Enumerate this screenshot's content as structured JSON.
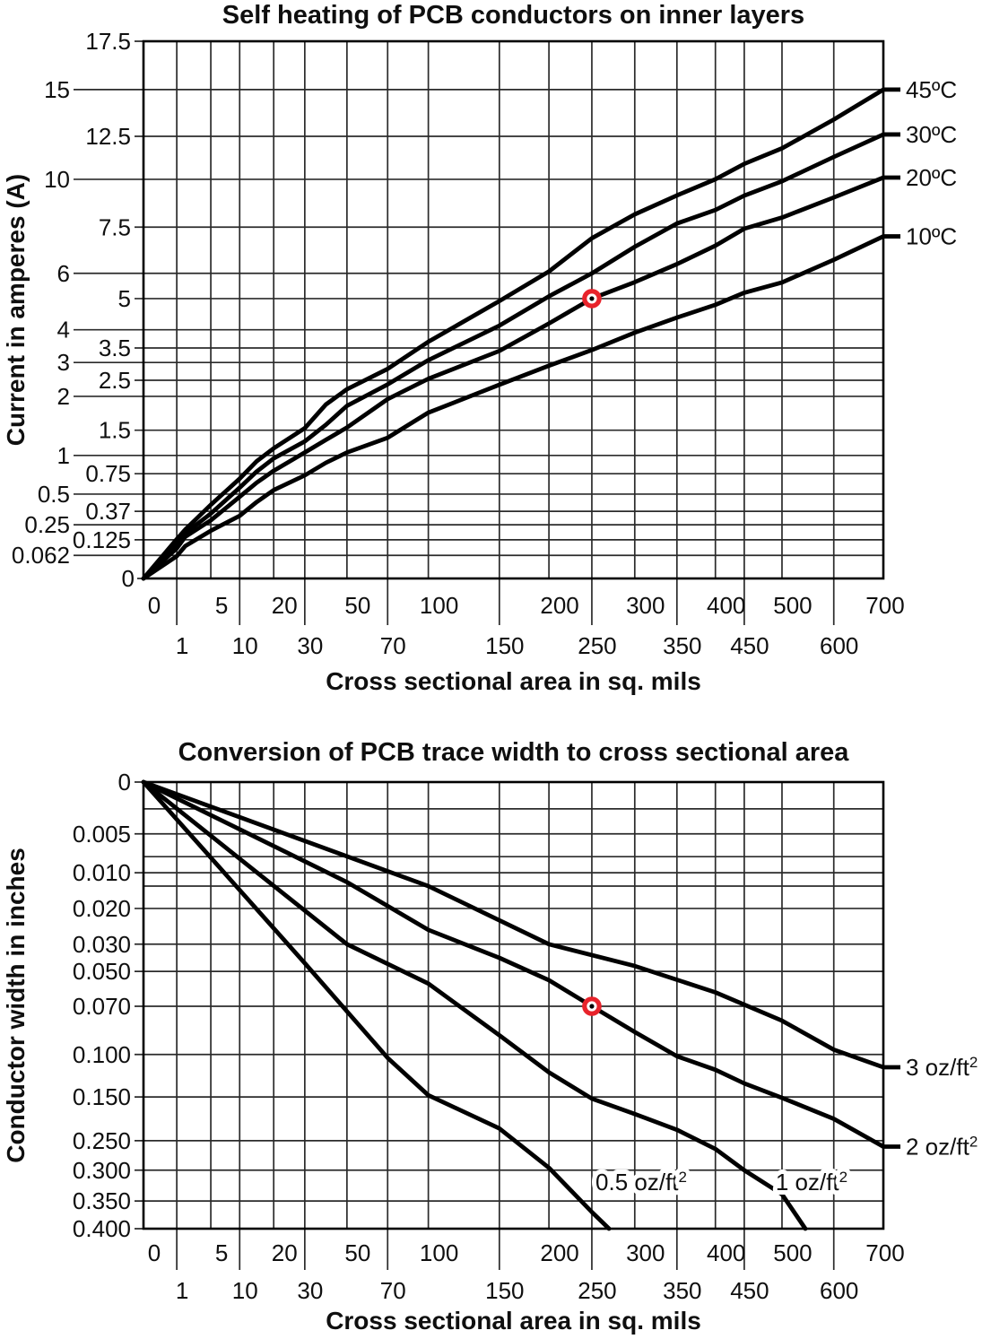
{
  "figure": {
    "background": "#ffffff",
    "ink": "#000000",
    "marker_color": "#e8232b"
  },
  "chart_data": [
    {
      "type": "line",
      "title": "Self heating of PCB conductors on inner layers",
      "xlabel": "Cross sectional area in sq. mils",
      "ylabel": "Current in amperes (A)",
      "xlim": [
        0,
        700
      ],
      "ylim": [
        0,
        17.5
      ],
      "grid": true,
      "legend_position": "right-edge-labels",
      "x_gridline_values": [
        0,
        1,
        5,
        10,
        20,
        30,
        50,
        70,
        100,
        150,
        200,
        250,
        300,
        350,
        400,
        450,
        500,
        600,
        700
      ],
      "x_ticks_row1": [
        {
          "label": "0",
          "value": 0
        },
        {
          "label": "5",
          "value": 5
        },
        {
          "label": "20",
          "value": 20
        },
        {
          "label": "50",
          "value": 50
        },
        {
          "label": "100",
          "value": 100
        },
        {
          "label": "200",
          "value": 200
        },
        {
          "label": "300",
          "value": 300
        },
        {
          "label": "400",
          "value": 400
        },
        {
          "label": "500",
          "value": 500
        },
        {
          "label": "700",
          "value": 700
        }
      ],
      "x_ticks_row2": [
        {
          "label": "1",
          "value": 1
        },
        {
          "label": "10",
          "value": 10
        },
        {
          "label": "30",
          "value": 30
        },
        {
          "label": "70",
          "value": 70
        },
        {
          "label": "150",
          "value": 150
        },
        {
          "label": "250",
          "value": 250
        },
        {
          "label": "350",
          "value": 350
        },
        {
          "label": "450",
          "value": 450
        },
        {
          "label": "600",
          "value": 600
        }
      ],
      "y_ticks_inner_column": [
        {
          "label": "17.5",
          "value": 17.5
        },
        {
          "label": "12.5",
          "value": 12.5
        },
        {
          "label": "7.5",
          "value": 7.5
        },
        {
          "label": "5",
          "value": 5
        },
        {
          "label": "3.5",
          "value": 3.5
        },
        {
          "label": "2.5",
          "value": 2.5
        },
        {
          "label": "1.5",
          "value": 1.5
        },
        {
          "label": "0.75",
          "value": 0.75
        },
        {
          "label": "0.37",
          "value": 0.37
        },
        {
          "label": "0.125",
          "value": 0.125
        }
      ],
      "y_ticks_outer_column": [
        {
          "label": "15",
          "value": 15
        },
        {
          "label": "10",
          "value": 10
        },
        {
          "label": "6",
          "value": 6
        },
        {
          "label": "4",
          "value": 4
        },
        {
          "label": "3",
          "value": 3
        },
        {
          "label": "2",
          "value": 2
        },
        {
          "label": "1",
          "value": 1
        },
        {
          "label": "0.5",
          "value": 0.5
        },
        {
          "label": "0.25",
          "value": 0.25
        },
        {
          "label": "0.062",
          "value": 0.062
        }
      ],
      "y_tick_origin": {
        "label": "0",
        "value": 0
      },
      "series": [
        {
          "name": "45ºC",
          "sup": "",
          "label_placement": "right",
          "x": [
            0,
            1,
            2,
            5,
            10,
            15,
            20,
            30,
            40,
            50,
            70,
            100,
            150,
            200,
            250,
            300,
            350,
            400,
            450,
            500,
            600,
            700
          ],
          "y": [
            0,
            0.13,
            0.21,
            0.42,
            0.69,
            0.92,
            1.14,
            1.53,
            1.88,
            2.22,
            2.82,
            3.67,
            4.92,
            6.06,
            7.14,
            8.17,
            9.16,
            10.0,
            10.9,
            11.8,
            13.4,
            15.0
          ]
        },
        {
          "name": "30ºC",
          "sup": "",
          "label_placement": "right",
          "x": [
            0,
            1,
            2,
            5,
            10,
            15,
            20,
            30,
            40,
            50,
            70,
            100,
            150,
            200,
            250,
            300,
            350,
            400,
            450,
            500,
            600,
            700
          ],
          "y": [
            0,
            0.11,
            0.18,
            0.35,
            0.58,
            0.78,
            0.96,
            1.28,
            1.58,
            1.86,
            2.37,
            3.08,
            4.13,
            5.09,
            6.0,
            6.86,
            7.69,
            8.4,
            9.15,
            9.9,
            11.3,
            12.6
          ]
        },
        {
          "name": "20ºC",
          "sup": "",
          "label_placement": "right",
          "x": [
            0,
            1,
            2,
            5,
            10,
            15,
            20,
            30,
            40,
            50,
            70,
            100,
            150,
            200,
            250,
            300,
            350,
            400,
            450,
            500,
            600,
            700
          ],
          "y": [
            0,
            0.09,
            0.15,
            0.29,
            0.48,
            0.64,
            0.79,
            1.06,
            1.31,
            1.54,
            1.96,
            2.54,
            3.4,
            4.2,
            5.0,
            5.65,
            6.3,
            6.9,
            7.45,
            8.0,
            9.05,
            10.1
          ]
        },
        {
          "name": "10ºC",
          "sup": "",
          "label_placement": "right",
          "x": [
            0,
            1,
            2,
            5,
            10,
            15,
            20,
            30,
            40,
            50,
            70,
            100,
            150,
            200,
            250,
            300,
            350,
            400,
            450,
            500,
            600,
            700
          ],
          "y": [
            0,
            0.06,
            0.1,
            0.2,
            0.33,
            0.44,
            0.55,
            0.73,
            0.9,
            1.06,
            1.35,
            1.76,
            2.36,
            2.91,
            3.43,
            3.92,
            4.39,
            4.8,
            5.23,
            5.64,
            6.44,
            7.2
          ]
        }
      ],
      "example_marker": {
        "x": 250,
        "y": 5
      }
    },
    {
      "type": "line",
      "title": "Conversion of PCB trace width to cross sectional area",
      "xlabel": "Cross sectional area in sq. mils",
      "ylabel": "Conductor width in inches",
      "xlim": [
        0,
        700
      ],
      "ylim": [
        0,
        0.4
      ],
      "y_inverted": true,
      "grid": true,
      "legend_position": "mixed-edge-and-inside-labels",
      "x_gridline_values": [
        0,
        1,
        5,
        10,
        20,
        30,
        50,
        70,
        100,
        150,
        200,
        250,
        300,
        350,
        400,
        450,
        500,
        600,
        700
      ],
      "x_ticks_row1": [
        {
          "label": "0",
          "value": 0
        },
        {
          "label": "5",
          "value": 5
        },
        {
          "label": "20",
          "value": 20
        },
        {
          "label": "50",
          "value": 50
        },
        {
          "label": "100",
          "value": 100
        },
        {
          "label": "200",
          "value": 200
        },
        {
          "label": "300",
          "value": 300
        },
        {
          "label": "400",
          "value": 400
        },
        {
          "label": "500",
          "value": 500
        },
        {
          "label": "700",
          "value": 700
        }
      ],
      "x_ticks_row2": [
        {
          "label": "1",
          "value": 1
        },
        {
          "label": "10",
          "value": 10
        },
        {
          "label": "30",
          "value": 30
        },
        {
          "label": "70",
          "value": 70
        },
        {
          "label": "150",
          "value": 150
        },
        {
          "label": "250",
          "value": 250
        },
        {
          "label": "350",
          "value": 350
        },
        {
          "label": "450",
          "value": 450
        },
        {
          "label": "600",
          "value": 600
        }
      ],
      "y_ticks": [
        {
          "label": "0",
          "value": 0
        },
        {
          "label": "0.005",
          "value": 0.005
        },
        {
          "label": "0.010",
          "value": 0.01
        },
        {
          "label": "0.020",
          "value": 0.02
        },
        {
          "label": "0.030",
          "value": 0.03
        },
        {
          "label": "0.050",
          "value": 0.05
        },
        {
          "label": "0.070",
          "value": 0.07
        },
        {
          "label": "0.100",
          "value": 0.1
        },
        {
          "label": "0.150",
          "value": 0.15
        },
        {
          "label": "0.250",
          "value": 0.25
        },
        {
          "label": "0.300",
          "value": 0.3
        },
        {
          "label": "0.350",
          "value": 0.35
        },
        {
          "label": "0.400",
          "value": 0.4
        }
      ],
      "y_unlabeled_gridline_values": [
        0.002,
        0.007,
        0.015
      ],
      "series": [
        {
          "name": "0.5 oz/ft",
          "sup": "2",
          "label_placement": "inside",
          "x": [
            0,
            30,
            70,
            100,
            150,
            200,
            250,
            270
          ],
          "y": [
            0,
            0.044,
            0.104,
            0.148,
            0.222,
            0.296,
            0.37,
            0.4
          ]
        },
        {
          "name": "1 oz/ft",
          "sup": "2",
          "label_placement": "inside",
          "x": [
            0,
            50,
            100,
            150,
            200,
            250,
            300,
            350,
            400,
            450,
            500,
            545
          ],
          "y": [
            0,
            0.03,
            0.057,
            0.088,
            0.121,
            0.154,
            0.189,
            0.225,
            0.264,
            0.3,
            0.339,
            0.4
          ]
        },
        {
          "name": "2 oz/ft",
          "sup": "2",
          "label_placement": "right",
          "x": [
            0,
            50,
            100,
            150,
            200,
            250,
            300,
            350,
            400,
            450,
            500,
            600,
            700
          ],
          "y": [
            0,
            0.0135,
            0.026,
            0.04,
            0.055,
            0.07,
            0.086,
            0.102,
            0.118,
            0.134,
            0.152,
            0.2,
            0.26
          ]
        },
        {
          "name": "3 oz/ft",
          "sup": "2",
          "label_placement": "right",
          "x": [
            0,
            100,
            200,
            300,
            400,
            500,
            600,
            700
          ],
          "y": [
            0,
            0.015,
            0.03,
            0.046,
            0.062,
            0.079,
            0.097,
            0.115
          ]
        }
      ],
      "example_marker": {
        "x": 250,
        "y": 0.07
      }
    }
  ]
}
